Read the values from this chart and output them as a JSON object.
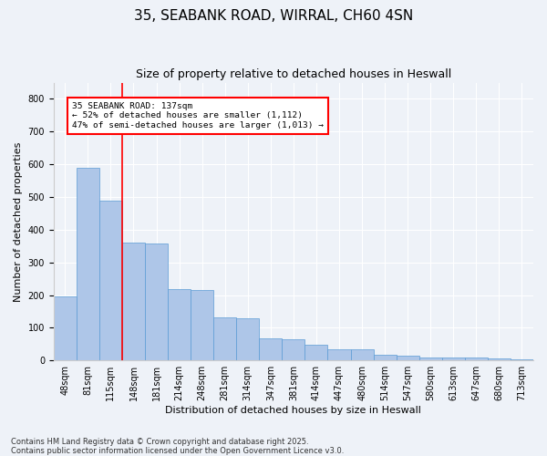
{
  "title": "35, SEABANK ROAD, WIRRAL, CH60 4SN",
  "subtitle": "Size of property relative to detached houses in Heswall",
  "xlabel": "Distribution of detached houses by size in Heswall",
  "ylabel": "Number of detached properties",
  "categories": [
    "48sqm",
    "81sqm",
    "115sqm",
    "148sqm",
    "181sqm",
    "214sqm",
    "248sqm",
    "281sqm",
    "314sqm",
    "347sqm",
    "381sqm",
    "414sqm",
    "447sqm",
    "480sqm",
    "514sqm",
    "547sqm",
    "580sqm",
    "613sqm",
    "647sqm",
    "680sqm",
    "713sqm"
  ],
  "values": [
    195,
    588,
    490,
    360,
    358,
    217,
    215,
    133,
    130,
    67,
    65,
    48,
    35,
    33,
    17,
    15,
    10,
    9,
    8,
    7,
    2
  ],
  "bar_color": "#aec6e8",
  "bar_edge_color": "#5b9bd5",
  "vline_color": "red",
  "annotation_text": "35 SEABANK ROAD: 137sqm\n← 52% of detached houses are smaller (1,112)\n47% of semi-detached houses are larger (1,013) →",
  "annotation_box_color": "white",
  "annotation_box_edge": "red",
  "ylim": [
    0,
    850
  ],
  "yticks": [
    0,
    100,
    200,
    300,
    400,
    500,
    600,
    700,
    800
  ],
  "footnote": "Contains HM Land Registry data © Crown copyright and database right 2025.\nContains public sector information licensed under the Open Government Licence v3.0.",
  "bg_color": "#eef2f8",
  "plot_bg_color": "#eef2f8",
  "grid_color": "#ffffff",
  "title_fontsize": 11,
  "subtitle_fontsize": 9,
  "ylabel_fontsize": 8,
  "xlabel_fontsize": 8,
  "tick_fontsize": 7,
  "footnote_fontsize": 6
}
